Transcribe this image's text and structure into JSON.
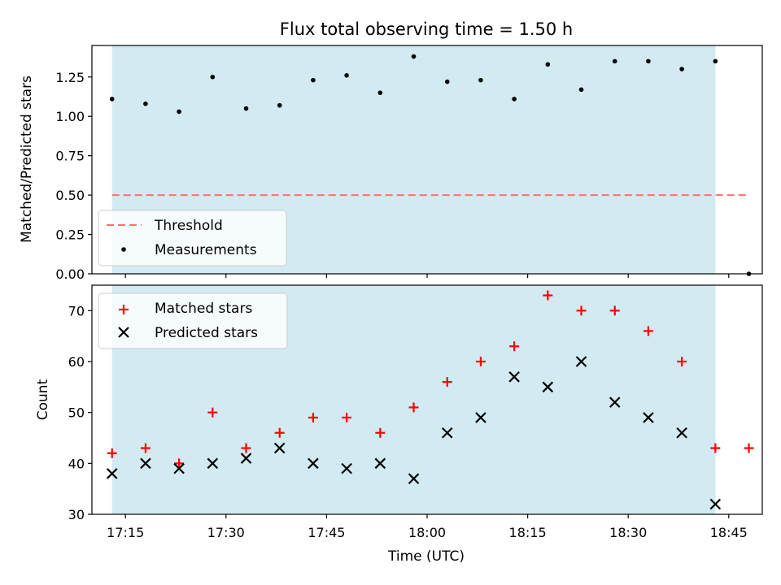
{
  "chart_data": [
    {
      "type": "scatter",
      "title": "Flux total observing time = 1.50 h",
      "xlabel": "",
      "ylabel": "Matched/Predicted stars",
      "xlim": [
        "17:10",
        "18:50"
      ],
      "ylim": [
        0,
        1.45
      ],
      "yticks": [
        "0.00",
        "0.25",
        "0.50",
        "0.75",
        "1.00",
        "1.25"
      ],
      "shaded_interval": [
        "17:13",
        "18:43"
      ],
      "shade_color": "#add8e6",
      "threshold": {
        "name": "Threshold",
        "value": 0.5,
        "x": [
          "17:13",
          "18:48"
        ],
        "color": "#ff6f6f"
      },
      "series": [
        {
          "name": "Measurements",
          "marker": "dot",
          "color": "#000000",
          "x": [
            "17:13",
            "17:18",
            "17:23",
            "17:28",
            "17:33",
            "17:38",
            "17:43",
            "17:48",
            "17:53",
            "17:58",
            "18:03",
            "18:08",
            "18:13",
            "18:18",
            "18:23",
            "18:28",
            "18:33",
            "18:38",
            "18:43",
            "18:48"
          ],
          "values": [
            1.11,
            1.08,
            1.03,
            1.25,
            1.05,
            1.07,
            1.23,
            1.26,
            1.15,
            1.38,
            1.22,
            1.23,
            1.11,
            1.33,
            1.17,
            1.35,
            1.35,
            1.3,
            1.35,
            0.0
          ]
        }
      ],
      "legend_location": "lower-left"
    },
    {
      "type": "scatter",
      "title": "",
      "xlabel": "Time (UTC)",
      "ylabel": "Count",
      "xlim": [
        "17:10",
        "18:50"
      ],
      "ylim": [
        30,
        75
      ],
      "yticks": [
        "30",
        "40",
        "50",
        "60",
        "70"
      ],
      "xticks": [
        "17:15",
        "17:30",
        "17:45",
        "18:00",
        "18:15",
        "18:30",
        "18:45"
      ],
      "shaded_interval": [
        "17:13",
        "18:43"
      ],
      "shade_color": "#add8e6",
      "series": [
        {
          "name": "Matched stars",
          "marker": "plus",
          "color": "#ff0000",
          "x": [
            "17:13",
            "17:18",
            "17:23",
            "17:28",
            "17:33",
            "17:38",
            "17:43",
            "17:48",
            "17:53",
            "17:58",
            "18:03",
            "18:08",
            "18:13",
            "18:18",
            "18:23",
            "18:28",
            "18:33",
            "18:38",
            "18:43",
            "18:48"
          ],
          "values": [
            42,
            43,
            40,
            50,
            43,
            46,
            49,
            49,
            46,
            51,
            56,
            60,
            63,
            73,
            70,
            70,
            66,
            60,
            43,
            43
          ]
        },
        {
          "name": "Predicted stars",
          "marker": "x",
          "color": "#000000",
          "x": [
            "17:13",
            "17:18",
            "17:23",
            "17:28",
            "17:33",
            "17:38",
            "17:43",
            "17:48",
            "17:53",
            "17:58",
            "18:03",
            "18:08",
            "18:13",
            "18:18",
            "18:23",
            "18:28",
            "18:33",
            "18:38",
            "18:43"
          ],
          "values": [
            38,
            40,
            39,
            40,
            41,
            43,
            40,
            39,
            40,
            37,
            46,
            49,
            57,
            55,
            60,
            52,
            49,
            46,
            32
          ]
        }
      ],
      "legend_location": "upper-left"
    }
  ]
}
